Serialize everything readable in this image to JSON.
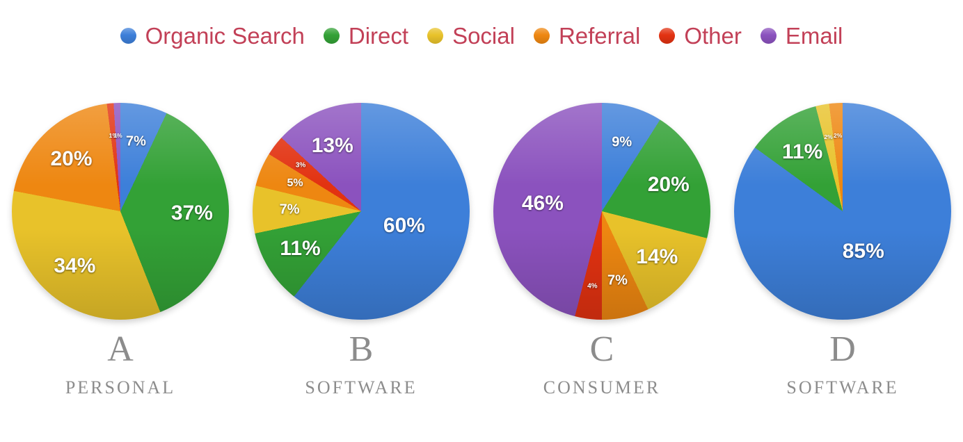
{
  "legend": {
    "position": "top",
    "text_color": "#C24057",
    "items": [
      {
        "label": "Organic Search"
      },
      {
        "label": "Direct"
      },
      {
        "label": "Social"
      },
      {
        "label": "Referral"
      },
      {
        "label": "Other"
      },
      {
        "label": "Email"
      }
    ]
  },
  "palette": {
    "Organic Search": "#3D7FD9",
    "Direct": "#33A136",
    "Social": "#E8C22A",
    "Referral": "#EE8711",
    "Other": "#E23211",
    "Email": "#8B52BE"
  },
  "styles": {
    "background": "#FFFFFF",
    "caption_color": "#8C8C8C",
    "slice_label_color": "#FFFFFF"
  },
  "chart_data": [
    {
      "type": "pie",
      "title": "A",
      "subtitle": "PERSONAL",
      "start_angle": 0,
      "direction": "clockwise",
      "slices": [
        {
          "label": "Organic Search",
          "value": 7,
          "display": "7%"
        },
        {
          "label": "Direct",
          "value": 37,
          "display": "37%"
        },
        {
          "label": "Social",
          "value": 34,
          "display": "34%"
        },
        {
          "label": "Referral",
          "value": 20,
          "display": "20%"
        },
        {
          "label": "Other",
          "value": 1,
          "display": "1%"
        },
        {
          "label": "Email",
          "value": 1,
          "display": "1%"
        }
      ]
    },
    {
      "type": "pie",
      "title": "B",
      "subtitle": "SOFTWARE",
      "start_angle": 0,
      "direction": "clockwise",
      "slices": [
        {
          "label": "Organic Search",
          "value": 60,
          "display": "60%"
        },
        {
          "label": "Direct",
          "value": 11,
          "display": "11%"
        },
        {
          "label": "Social",
          "value": 7,
          "display": "7%"
        },
        {
          "label": "Referral",
          "value": 5,
          "display": "5%"
        },
        {
          "label": "Other",
          "value": 3,
          "display": "3%"
        },
        {
          "label": "Email",
          "value": 13,
          "display": "13%"
        }
      ]
    },
    {
      "type": "pie",
      "title": "C",
      "subtitle": "CONSUMER",
      "start_angle": 0,
      "direction": "clockwise",
      "slices": [
        {
          "label": "Organic Search",
          "value": 9,
          "display": "9%"
        },
        {
          "label": "Direct",
          "value": 20,
          "display": "20%"
        },
        {
          "label": "Social",
          "value": 14,
          "display": "14%"
        },
        {
          "label": "Referral",
          "value": 7,
          "display": "7%"
        },
        {
          "label": "Other",
          "value": 4,
          "display": "4%"
        },
        {
          "label": "Email",
          "value": 46,
          "display": "46%"
        }
      ]
    },
    {
      "type": "pie",
      "title": "D",
      "subtitle": "SOFTWARE",
      "start_angle": 0,
      "direction": "clockwise",
      "slices": [
        {
          "label": "Organic Search",
          "value": 85,
          "display": "85%"
        },
        {
          "label": "Direct",
          "value": 11,
          "display": "11%"
        },
        {
          "label": "Social",
          "value": 2,
          "display": "2%"
        },
        {
          "label": "Referral",
          "value": 2,
          "display": "2%"
        }
      ]
    }
  ]
}
